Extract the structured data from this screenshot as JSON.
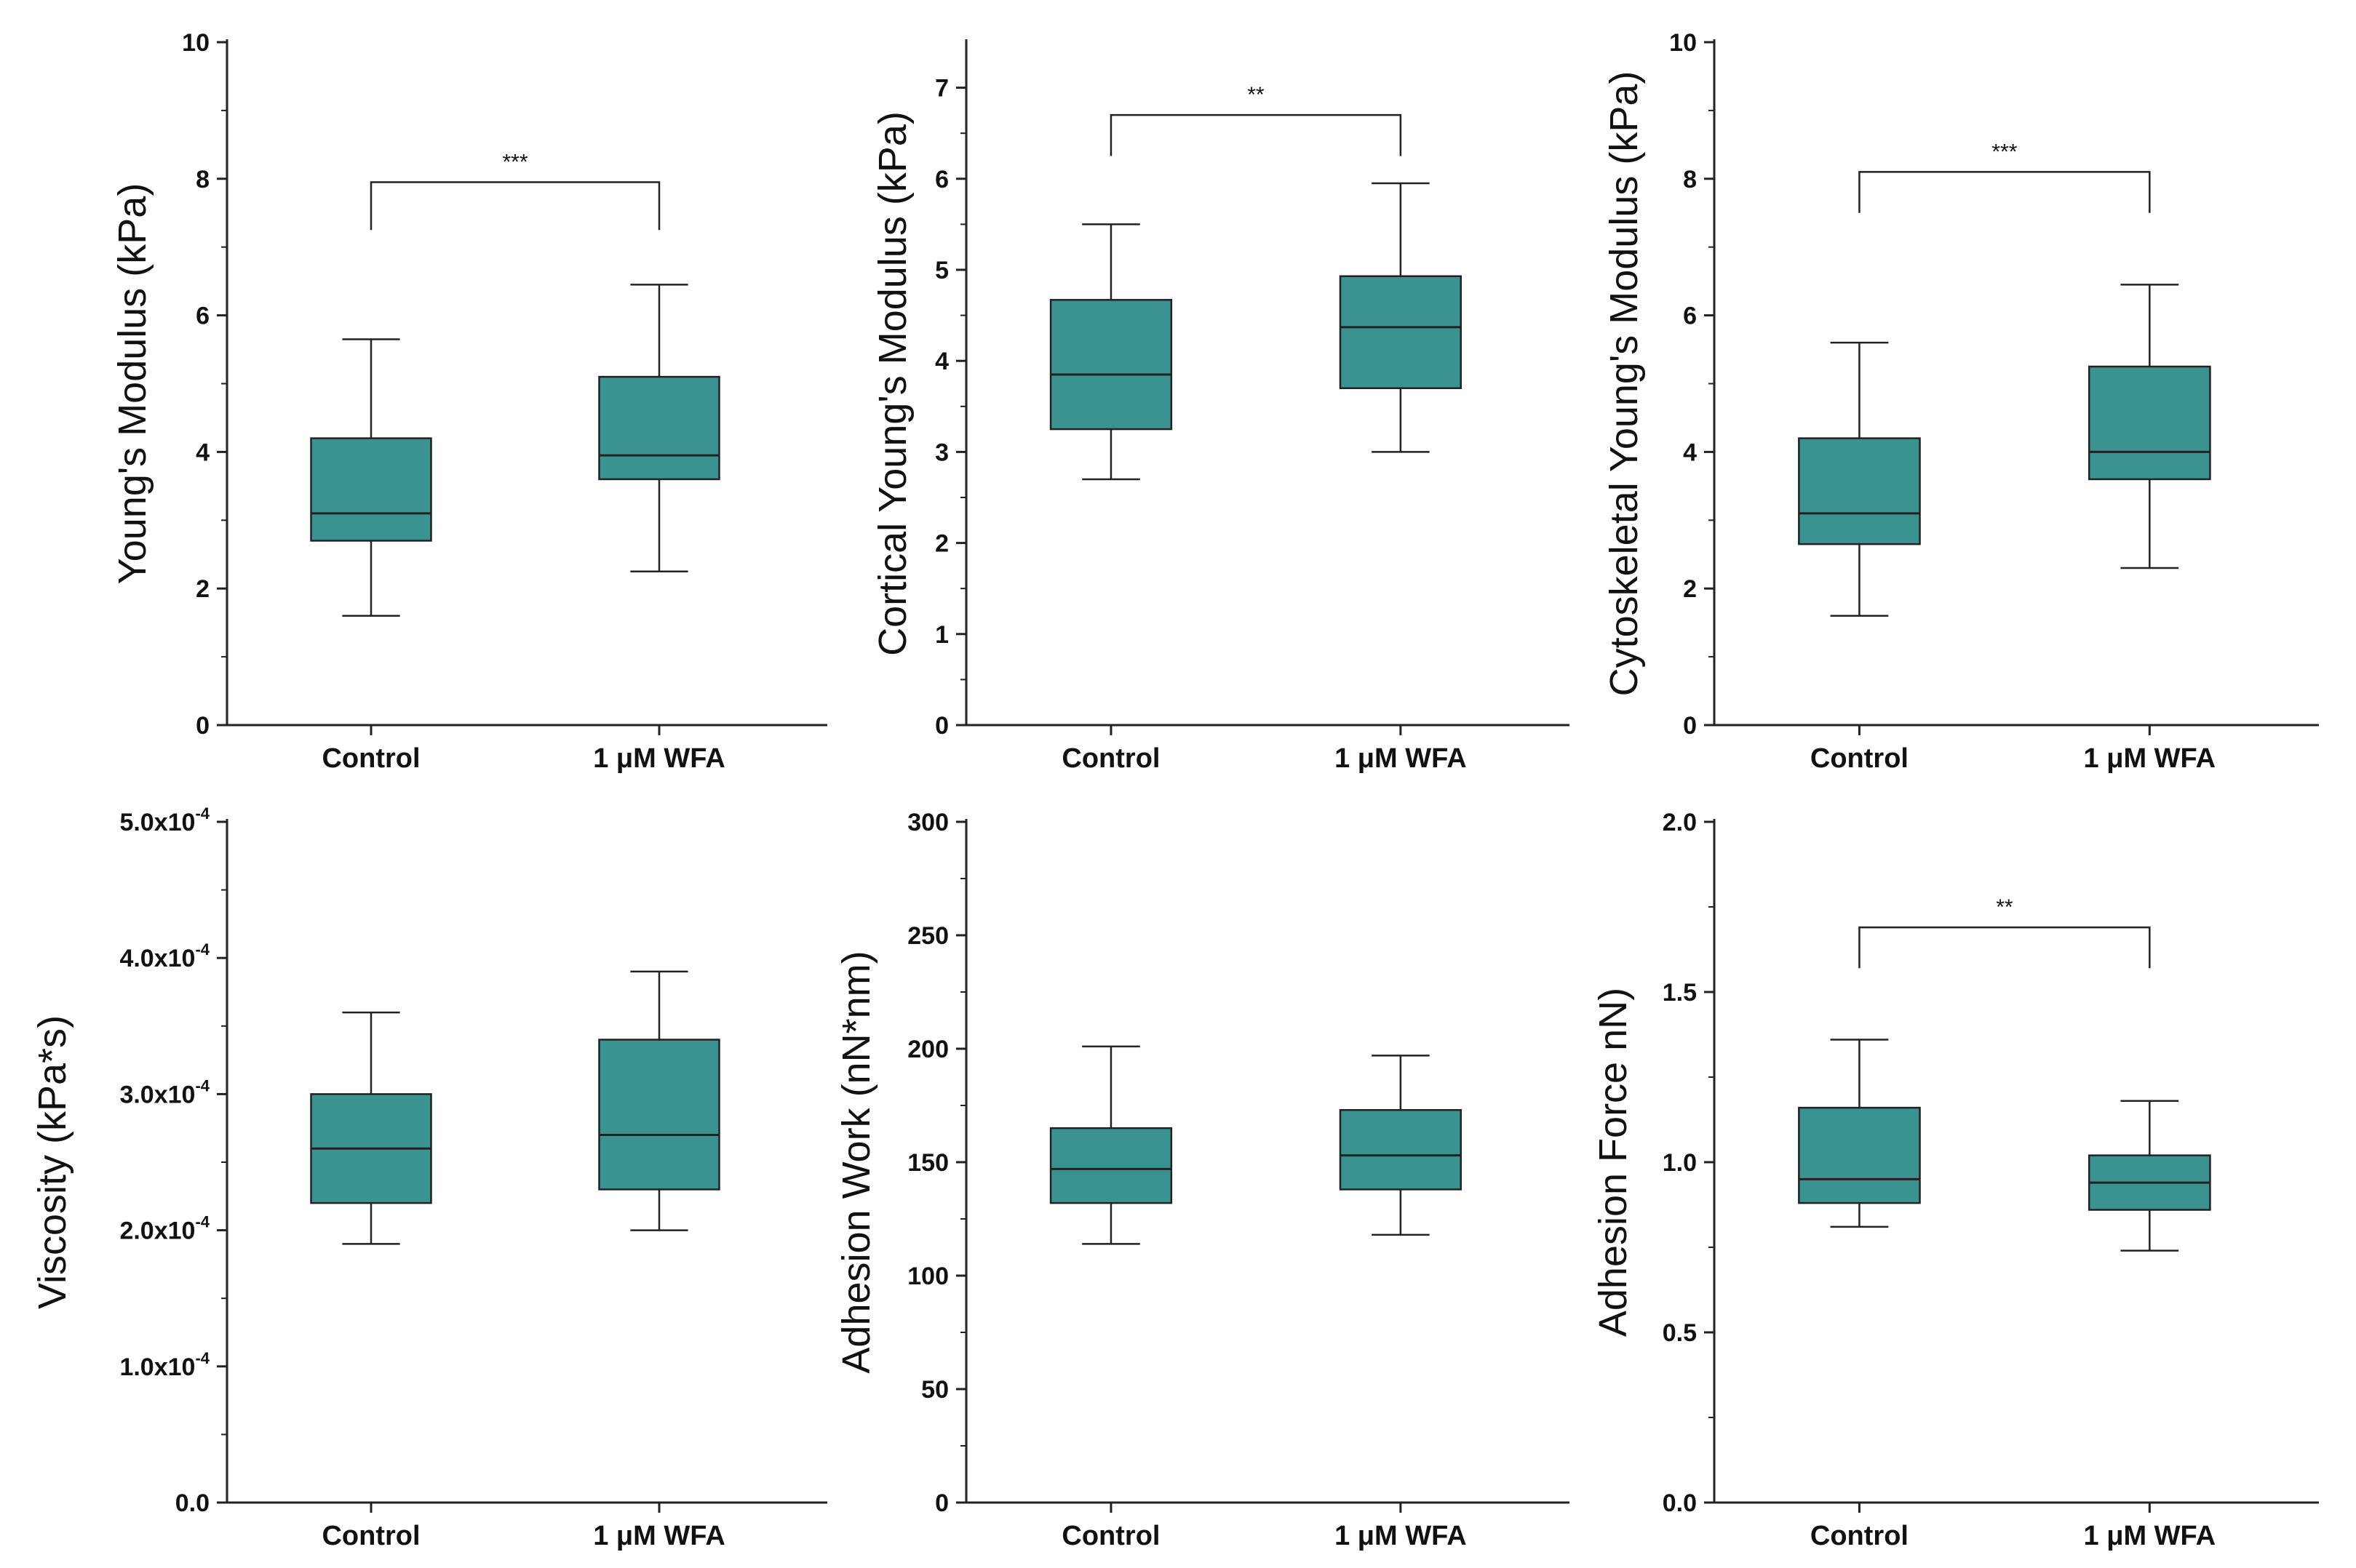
{
  "figure": {
    "box_color": "#3a9390",
    "line_color": "#222222"
  },
  "chart_data": [
    {
      "type": "box",
      "ylabel": "Young's Modulus (kPa)",
      "ylim": [
        0,
        10
      ],
      "yticks": [
        0,
        2,
        4,
        6,
        8,
        10
      ],
      "ytick_labels": [
        "0",
        "2",
        "4",
        "6",
        "8",
        "10"
      ],
      "categories": [
        "Control",
        "1 μM WFA"
      ],
      "boxes": [
        {
          "whisker_low": 1.6,
          "q1": 2.7,
          "median": 3.1,
          "q3": 4.2,
          "whisker_high": 5.65
        },
        {
          "whisker_low": 2.25,
          "q1": 3.6,
          "median": 3.95,
          "q3": 5.1,
          "whisker_high": 6.45
        }
      ],
      "significance": {
        "label": "***",
        "bar_y": 7.95,
        "left_y": 7.25,
        "right_y": 7.25
      }
    },
    {
      "type": "box",
      "ylabel": "Cortical Young's Modulus (kPa)",
      "ylim": [
        0,
        7.5
      ],
      "yticks": [
        0,
        1,
        2,
        3,
        4,
        5,
        6,
        7
      ],
      "ytick_labels": [
        "0",
        "1",
        "2",
        "3",
        "4",
        "5",
        "6",
        "7"
      ],
      "categories": [
        "Control",
        "1 μM WFA"
      ],
      "boxes": [
        {
          "whisker_low": 2.7,
          "q1": 3.25,
          "median": 3.85,
          "q3": 4.67,
          "whisker_high": 5.5
        },
        {
          "whisker_low": 3.0,
          "q1": 3.7,
          "median": 4.37,
          "q3": 4.93,
          "whisker_high": 5.95
        }
      ],
      "significance": {
        "label": "**",
        "bar_y": 6.7,
        "left_y": 6.25,
        "right_y": 6.25
      }
    },
    {
      "type": "box",
      "ylabel": "Cytoskeletal Young's Modulus (kPa)",
      "ylim": [
        0,
        10
      ],
      "yticks": [
        0,
        2,
        4,
        6,
        8,
        10
      ],
      "ytick_labels": [
        "0",
        "2",
        "4",
        "6",
        "8",
        "10"
      ],
      "categories": [
        "Control",
        "1 μM WFA"
      ],
      "boxes": [
        {
          "whisker_low": 1.6,
          "q1": 2.65,
          "median": 3.1,
          "q3": 4.2,
          "whisker_high": 5.6
        },
        {
          "whisker_low": 2.3,
          "q1": 3.6,
          "median": 4.0,
          "q3": 5.25,
          "whisker_high": 6.45
        }
      ],
      "significance": {
        "label": "***",
        "bar_y": 8.1,
        "left_y": 7.5,
        "right_y": 7.5
      }
    },
    {
      "type": "box",
      "ylabel": "Viscosity (kPa*s)",
      "ylim": [
        0,
        0.0005
      ],
      "yticks": [
        0,
        0.0001,
        0.0002,
        0.0003,
        0.0004,
        0.0005
      ],
      "ytick_labels": [
        "0.0",
        "1.0x10",
        "2.0x10",
        "3.0x10",
        "4.0x10",
        "5.0x10"
      ],
      "ytick_exponents": [
        "",
        "-4",
        "-4",
        "-4",
        "-4",
        "-4"
      ],
      "categories": [
        "Control",
        "1 μM WFA"
      ],
      "boxes": [
        {
          "whisker_low": 0.00019,
          "q1": 0.00022,
          "median": 0.00026,
          "q3": 0.0003,
          "whisker_high": 0.00036
        },
        {
          "whisker_low": 0.0002,
          "q1": 0.00023,
          "median": 0.00027,
          "q3": 0.00034,
          "whisker_high": 0.00039
        }
      ]
    },
    {
      "type": "box",
      "ylabel": "Adhesion Work (nN*nm)",
      "ylim": [
        0,
        300
      ],
      "yticks": [
        0,
        50,
        100,
        150,
        200,
        250,
        300
      ],
      "ytick_labels": [
        "0",
        "50",
        "100",
        "150",
        "200",
        "250",
        "300"
      ],
      "categories": [
        "Control",
        "1 μM WFA"
      ],
      "boxes": [
        {
          "whisker_low": 114,
          "q1": 132,
          "median": 147,
          "q3": 165,
          "whisker_high": 201
        },
        {
          "whisker_low": 118,
          "q1": 138,
          "median": 153,
          "q3": 173,
          "whisker_high": 197
        }
      ]
    },
    {
      "type": "box",
      "ylabel": "Adhesion Force nN)",
      "ylim": [
        0,
        2.0
      ],
      "yticks": [
        0,
        0.5,
        1.0,
        1.5,
        2.0
      ],
      "ytick_labels": [
        "0.0",
        "0.5",
        "1.0",
        "1.5",
        "2.0"
      ],
      "categories": [
        "Control",
        "1 μM WFA"
      ],
      "boxes": [
        {
          "whisker_low": 0.81,
          "q1": 0.88,
          "median": 0.95,
          "q3": 1.16,
          "whisker_high": 1.36
        },
        {
          "whisker_low": 0.74,
          "q1": 0.86,
          "median": 0.94,
          "q3": 1.02,
          "whisker_high": 1.18
        }
      ],
      "significance": {
        "label": "**",
        "bar_y": 1.69,
        "left_y": 1.57,
        "right_y": 1.57
      }
    }
  ]
}
